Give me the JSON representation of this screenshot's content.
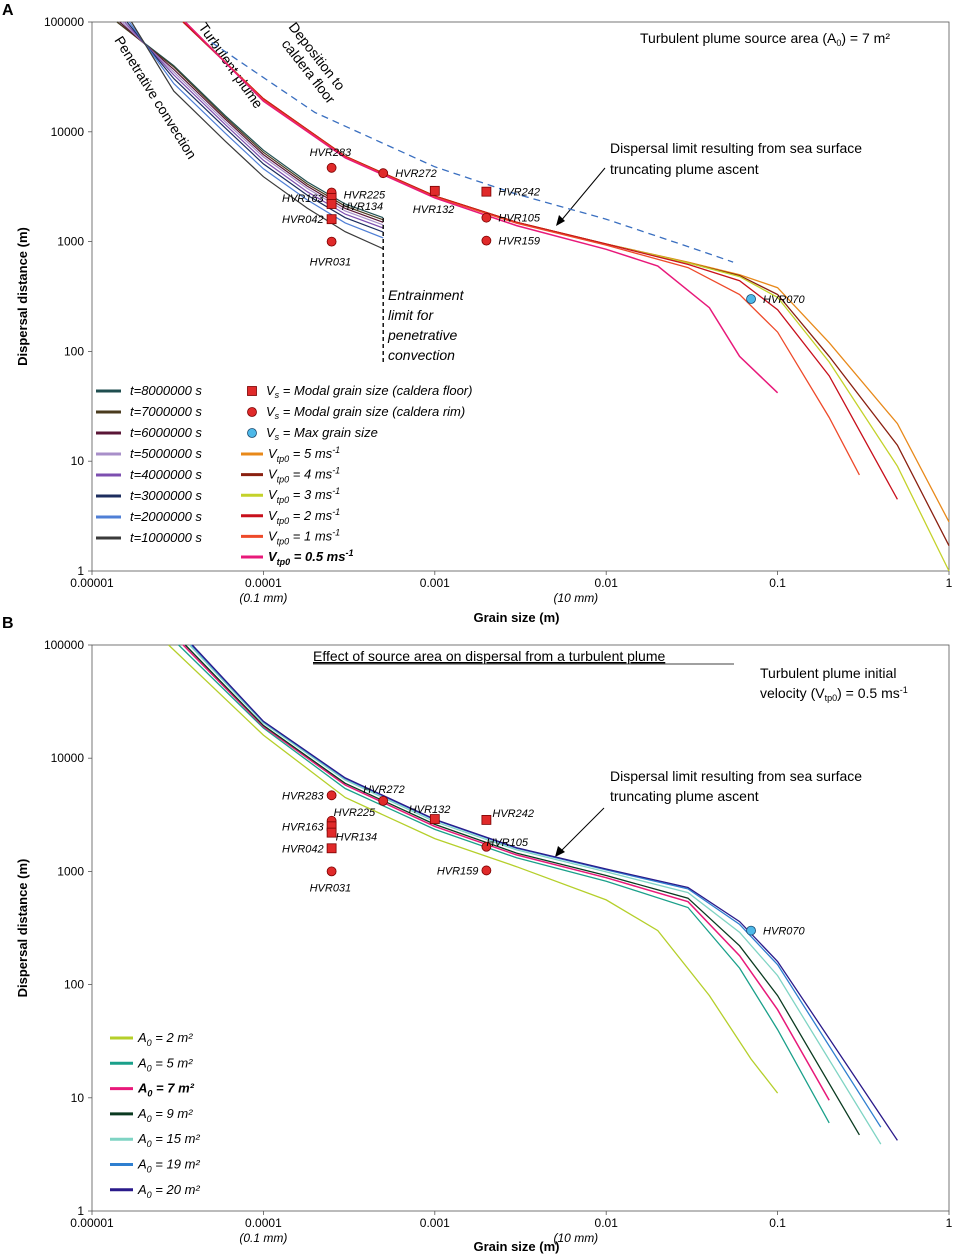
{
  "chart_data": [
    {
      "panel": "A",
      "type": "line",
      "xscale": "log",
      "yscale": "log",
      "xlim": [
        1e-05,
        1
      ],
      "ylim": [
        1,
        100000
      ],
      "xlabel": "Grain size (m)",
      "ylabel": "Dispersal distance (m)",
      "x_ticks": [
        "0.00001",
        "0.0001",
        "0.001",
        "0.01",
        "0.1",
        "1"
      ],
      "x_tick_subs": [
        "(0.1 mm)",
        "(10 mm)"
      ],
      "y_ticks": [
        "1",
        "10",
        "100",
        "1000",
        "10000",
        "100000"
      ],
      "title_note": "Turbulent plume source area (A",
      "title_note_sub": "0",
      "title_note_end": ") = 7 m²",
      "annotations": {
        "penetrative": "Penetrative convection",
        "turbulent": "Turbulent plume",
        "deposition_1": "Deposition to",
        "deposition_2": "caldera floor",
        "limit_1": "Dispersal limit resulting from sea surface",
        "limit_2": "truncating plume ascent",
        "entrain_1": "Entrainment",
        "entrain_2": "limit for",
        "entrain_3": "penetrative",
        "entrain_4": "convection"
      },
      "penetrative_series": [
        {
          "name": "t=8000000 s",
          "color": "#1f4e4f",
          "x": [
            1.4e-05,
            3e-05,
            6e-05,
            0.0001,
            0.00018,
            0.0003,
            0.0005
          ],
          "y": [
            100000,
            40000,
            14000,
            6800,
            3500,
            2200,
            1650
          ]
        },
        {
          "name": "t=7000000 s",
          "color": "#4a3b1e",
          "x": [
            1.4e-05,
            3e-05,
            6e-05,
            0.0001,
            0.00018,
            0.0003,
            0.0005
          ],
          "y": [
            100000,
            39000,
            13500,
            6500,
            3350,
            2100,
            1580
          ]
        },
        {
          "name": "t=6000000 s",
          "color": "#5a1636",
          "x": [
            1.45e-05,
            3e-05,
            6e-05,
            0.0001,
            0.00018,
            0.0003,
            0.0005
          ],
          "y": [
            100000,
            37000,
            13000,
            6200,
            3200,
            2000,
            1500
          ]
        },
        {
          "name": "t=5000000 s",
          "color": "#a88fc9",
          "x": [
            1.5e-05,
            3e-05,
            6e-05,
            0.0001,
            0.00018,
            0.0003,
            0.0005
          ],
          "y": [
            100000,
            35000,
            12300,
            5900,
            3050,
            1900,
            1420
          ]
        },
        {
          "name": "t=4000000 s",
          "color": "#7d4fb0",
          "x": [
            1.55e-05,
            3e-05,
            6e-05,
            0.0001,
            0.00018,
            0.0003,
            0.0005
          ],
          "y": [
            100000,
            33000,
            11600,
            5500,
            2850,
            1780,
            1330
          ]
        },
        {
          "name": "t=3000000 s",
          "color": "#1c2d5e",
          "x": [
            1.6e-05,
            3e-05,
            6e-05,
            0.0001,
            0.00018,
            0.0003,
            0.0005
          ],
          "y": [
            100000,
            30500,
            10800,
            5100,
            2650,
            1650,
            1220
          ]
        },
        {
          "name": "t=2000000 s",
          "color": "#4f7fd6",
          "x": [
            1.65e-05,
            3e-05,
            6e-05,
            0.0001,
            0.00018,
            0.0003,
            0.0005
          ],
          "y": [
            100000,
            27500,
            9700,
            4600,
            2400,
            1480,
            1080
          ]
        },
        {
          "name": "t=1000000 s",
          "color": "#3a3a3a",
          "x": [
            1.7e-05,
            3e-05,
            6e-05,
            0.0001,
            0.00018,
            0.0003,
            0.0005
          ],
          "y": [
            100000,
            23500,
            8200,
            3900,
            2020,
            1230,
            860
          ]
        }
      ],
      "plume_series": [
        {
          "name": "Vtp0 = 5 ms-1",
          "label": "V",
          "sub": "tp0",
          "val": " = 5 ms",
          "color": "#e8891a",
          "x": [
            3.4e-05,
            0.0001,
            0.0003,
            0.001,
            0.003,
            0.01,
            0.03,
            0.06,
            0.1,
            0.2,
            0.5,
            1
          ],
          "y": [
            100000,
            20000,
            6000,
            2600,
            1500,
            950,
            650,
            500,
            380,
            120,
            22,
            2.8
          ]
        },
        {
          "name": "Vtp0 = 4 ms-1",
          "label": "V",
          "sub": "tp0",
          "val": " = 4 ms",
          "color": "#8a2010",
          "x": [
            3.4e-05,
            0.0001,
            0.0003,
            0.001,
            0.003,
            0.01,
            0.03,
            0.06,
            0.1,
            0.2,
            0.5,
            1
          ],
          "y": [
            100000,
            20000,
            6000,
            2600,
            1500,
            950,
            640,
            490,
            330,
            90,
            14,
            1.7
          ]
        },
        {
          "name": "Vtp0 = 3 ms-1",
          "label": "V",
          "sub": "tp0",
          "val": " = 3 ms",
          "color": "#c4d22a",
          "x": [
            3.4e-05,
            0.0001,
            0.0003,
            0.001,
            0.003,
            0.01,
            0.03,
            0.06,
            0.1,
            0.2,
            0.5,
            1
          ],
          "y": [
            100000,
            20000,
            6000,
            2600,
            1500,
            950,
            640,
            480,
            310,
            80,
            9,
            1
          ]
        },
        {
          "name": "Vtp0 = 2 ms-1",
          "label": "V",
          "sub": "tp0",
          "val": " = 2 ms",
          "color": "#c8101c",
          "x": [
            3.4e-05,
            0.0001,
            0.0003,
            0.001,
            0.003,
            0.01,
            0.03,
            0.06,
            0.1,
            0.2,
            0.5
          ],
          "y": [
            100000,
            20000,
            6000,
            2600,
            1500,
            950,
            620,
            440,
            240,
            60,
            4.5
          ]
        },
        {
          "name": "Vtp0 = 1 ms-1",
          "label": "V",
          "sub": "tp0",
          "val": " = 1 ms",
          "color": "#ee4a2a",
          "x": [
            3.5e-05,
            0.0001,
            0.0003,
            0.001,
            0.003,
            0.01,
            0.03,
            0.06,
            0.1,
            0.2,
            0.3
          ],
          "y": [
            100000,
            19500,
            5900,
            2550,
            1470,
            930,
            580,
            330,
            150,
            25,
            7.5
          ]
        },
        {
          "name": "Vtp0 = 0.5 ms-1",
          "label": "V",
          "sub": "tp0",
          "val": " = 0.5 ms",
          "color": "#e8197a",
          "bold": true,
          "x": [
            3.5e-05,
            0.0001,
            0.0003,
            0.001,
            0.003,
            0.01,
            0.02,
            0.04,
            0.06,
            0.1
          ],
          "y": [
            100000,
            19000,
            5800,
            2500,
            1400,
            850,
            600,
            250,
            90,
            42
          ]
        }
      ],
      "deposition_line": {
        "x": [
          5e-05,
          0.0002,
          0.001,
          0.003,
          0.01,
          0.03,
          0.055
        ],
        "y": [
          65000,
          15000,
          4800,
          2700,
          1600,
          900,
          650
        ]
      },
      "entrainment_line": {
        "x": 0.0005,
        "y": [
          80,
          1650
        ]
      },
      "samples": [
        {
          "name": "HVR283",
          "x": 0.00025,
          "y": 4700,
          "shape": "circle",
          "color": "#e02a2a"
        },
        {
          "name": "HVR272",
          "x": 0.0005,
          "y": 4200,
          "shape": "circle",
          "color": "#e02a2a"
        },
        {
          "name": "HVR225",
          "x": 0.00025,
          "y": 2800,
          "shape": "circle",
          "color": "#e02a2a"
        },
        {
          "name": "HVR163",
          "x": 0.00025,
          "y": 2500,
          "shape": "square",
          "color": "#e02a2a"
        },
        {
          "name": "HVR134",
          "x": 0.00025,
          "y": 2200,
          "shape": "square",
          "color": "#e02a2a"
        },
        {
          "name": "HVR042",
          "x": 0.00025,
          "y": 1600,
          "shape": "square",
          "color": "#e02a2a"
        },
        {
          "name": "HVR031",
          "x": 0.00025,
          "y": 1000,
          "shape": "circle",
          "color": "#e02a2a"
        },
        {
          "name": "HVR132",
          "x": 0.001,
          "y": 2900,
          "shape": "square",
          "color": "#e02a2a"
        },
        {
          "name": "HVR242",
          "x": 0.002,
          "y": 2850,
          "shape": "square",
          "color": "#e02a2a"
        },
        {
          "name": "HVR105",
          "x": 0.002,
          "y": 1650,
          "shape": "circle",
          "color": "#e02a2a"
        },
        {
          "name": "HVR159",
          "x": 0.002,
          "y": 1020,
          "shape": "circle",
          "color": "#e02a2a"
        },
        {
          "name": "HVR070",
          "x": 0.07,
          "y": 300,
          "shape": "circle",
          "color": "#4db8e8"
        }
      ],
      "marker_legend": [
        {
          "shape": "square",
          "color": "#e02a2a",
          "pre": "V",
          "sub": "s",
          "text": " = Modal grain size (caldera floor)"
        },
        {
          "shape": "circle",
          "color": "#e02a2a",
          "pre": "V",
          "sub": "s",
          "text": " = Modal grain size (caldera rim)"
        },
        {
          "shape": "circle",
          "color": "#4db8e8",
          "pre": "V",
          "sub": "s",
          "text": " = Max grain size"
        }
      ]
    },
    {
      "panel": "B",
      "type": "line",
      "xscale": "log",
      "yscale": "log",
      "xlim": [
        1e-05,
        1
      ],
      "ylim": [
        1,
        100000
      ],
      "title": "Effect of source area on dispersal from a turbulent plume",
      "xlabel": "Grain size (m)",
      "ylabel": "Dispersal distance (m)",
      "x_ticks": [
        "0.00001",
        "0.0001",
        "0.001",
        "0.01",
        "0.1",
        "1"
      ],
      "x_tick_subs": [
        "(0.1 mm)",
        "(10 mm)"
      ],
      "y_ticks": [
        "1",
        "10",
        "100",
        "1000",
        "10000",
        "100000"
      ],
      "note_1": "Turbulent plume initial",
      "note_2": "velocity (V",
      "note_2_sub": "tp0",
      "note_2_end": ") = 0.5 ms",
      "limit_1": "Dispersal limit resulting from sea surface",
      "limit_2": "truncating plume ascent",
      "series": [
        {
          "name": "A0 = 2 m²",
          "val": " = 2 m²",
          "color": "#b5cf2a",
          "x": [
            2.8e-05,
            0.0001,
            0.0003,
            0.001,
            0.003,
            0.01,
            0.02,
            0.04,
            0.07,
            0.1
          ],
          "y": [
            100000,
            16000,
            4500,
            1950,
            1100,
            560,
            300,
            80,
            22,
            11
          ]
        },
        {
          "name": "A0 = 5 m²",
          "val": " = 5 m²",
          "color": "#1aa08a",
          "x": [
            3.2e-05,
            0.0001,
            0.0003,
            0.001,
            0.003,
            0.01,
            0.03,
            0.06,
            0.1,
            0.2
          ],
          "y": [
            100000,
            18500,
            5400,
            2350,
            1320,
            820,
            480,
            140,
            40,
            6
          ]
        },
        {
          "name": "A0 = 7 m²",
          "val": " = 7 m²",
          "color": "#e8197a",
          "bold": true,
          "x": [
            3.4e-05,
            0.0001,
            0.0003,
            0.001,
            0.003,
            0.01,
            0.03,
            0.06,
            0.1,
            0.2
          ],
          "y": [
            100000,
            19000,
            5800,
            2500,
            1400,
            880,
            540,
            180,
            60,
            9.5
          ]
        },
        {
          "name": "A0 = 9 m²",
          "val": " = 9 m²",
          "color": "#0a3a20",
          "x": [
            3.5e-05,
            0.0001,
            0.0003,
            0.001,
            0.003,
            0.01,
            0.03,
            0.06,
            0.1,
            0.3
          ],
          "y": [
            100000,
            19500,
            6000,
            2600,
            1450,
            920,
            580,
            220,
            80,
            4.7
          ]
        },
        {
          "name": "A0 = 15 m²",
          "val": " = 15 m²",
          "color": "#7fd4c4",
          "x": [
            3.7e-05,
            0.0001,
            0.0003,
            0.001,
            0.003,
            0.01,
            0.03,
            0.06,
            0.1,
            0.4
          ],
          "y": [
            100000,
            20500,
            6400,
            2750,
            1550,
            990,
            650,
            290,
            120,
            3.9
          ]
        },
        {
          "name": "A0 = 19 m²",
          "val": " = 19 m²",
          "color": "#2f7fd0",
          "x": [
            3.8e-05,
            0.0001,
            0.0003,
            0.001,
            0.003,
            0.01,
            0.03,
            0.06,
            0.1,
            0.4
          ],
          "y": [
            100000,
            21000,
            6600,
            2850,
            1600,
            1030,
            700,
            340,
            150,
            5.5
          ]
        },
        {
          "name": "A0 = 20 m²",
          "val": " = 20 m²",
          "color": "#2a1a8a",
          "x": [
            3.85e-05,
            0.0001,
            0.0003,
            0.001,
            0.003,
            0.01,
            0.03,
            0.06,
            0.1,
            0.5
          ],
          "y": [
            100000,
            21200,
            6700,
            2880,
            1620,
            1050,
            720,
            360,
            160,
            4.2
          ]
        }
      ],
      "samples": [
        {
          "name": "HVR283",
          "x": 0.00025,
          "y": 4700,
          "shape": "circle",
          "color": "#e02a2a"
        },
        {
          "name": "HVR272",
          "x": 0.0005,
          "y": 4200,
          "shape": "circle",
          "color": "#e02a2a"
        },
        {
          "name": "HVR225",
          "x": 0.00025,
          "y": 2800,
          "shape": "circle",
          "color": "#e02a2a"
        },
        {
          "name": "HVR163",
          "x": 0.00025,
          "y": 2500,
          "shape": "square",
          "color": "#e02a2a"
        },
        {
          "name": "HVR134",
          "x": 0.00025,
          "y": 2200,
          "shape": "square",
          "color": "#e02a2a"
        },
        {
          "name": "HVR042",
          "x": 0.00025,
          "y": 1600,
          "shape": "square",
          "color": "#e02a2a"
        },
        {
          "name": "HVR031",
          "x": 0.00025,
          "y": 1000,
          "shape": "circle",
          "color": "#e02a2a"
        },
        {
          "name": "HVR132",
          "x": 0.001,
          "y": 2900,
          "shape": "square",
          "color": "#e02a2a"
        },
        {
          "name": "HVR242",
          "x": 0.002,
          "y": 2850,
          "shape": "square",
          "color": "#e02a2a"
        },
        {
          "name": "HVR105",
          "x": 0.002,
          "y": 1650,
          "shape": "circle",
          "color": "#e02a2a"
        },
        {
          "name": "HVR159",
          "x": 0.002,
          "y": 1020,
          "shape": "circle",
          "color": "#e02a2a"
        },
        {
          "name": "HVR070",
          "x": 0.07,
          "y": 300,
          "shape": "circle",
          "color": "#4db8e8"
        }
      ]
    }
  ]
}
